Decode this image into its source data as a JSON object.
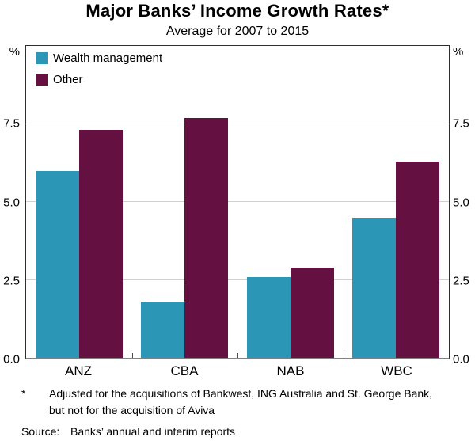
{
  "header": {
    "title": "Major Banks’ Income Growth Rates*",
    "subtitle": "Average for 2007 to 2015"
  },
  "chart_data": {
    "type": "bar",
    "title": "Major Banks’ Income Growth Rates*",
    "subtitle": "Average for 2007 to 2015",
    "unit": "%",
    "categories": [
      "ANZ",
      "CBA",
      "NAB",
      "WBC"
    ],
    "series": [
      {
        "name": "Wealth management",
        "color": "#2B96B5",
        "values": [
          6.0,
          1.8,
          2.6,
          4.5
        ]
      },
      {
        "name": "Other",
        "color": "#641041",
        "values": [
          7.3,
          7.7,
          2.9,
          6.3
        ]
      }
    ],
    "ylim": [
      0,
      10
    ],
    "yticks": [
      0,
      2.5,
      5,
      7.5
    ],
    "ytick_labels": [
      "0.0",
      "2.5",
      "5.0",
      "7.5"
    ],
    "grid": true,
    "legend_position": "top-left",
    "colors": {
      "gridline": "#d0d0d0",
      "axis_line": "#828282",
      "plot_border": "#2e2e2e"
    }
  },
  "footnote": {
    "marker": "*",
    "text": "Adjusted for the acquisitions of Bankwest, ING Australia and St. George Bank, but not for the acquisition of Aviva",
    "source_label": "Source:",
    "source_text": "Banks’ annual and interim reports"
  }
}
